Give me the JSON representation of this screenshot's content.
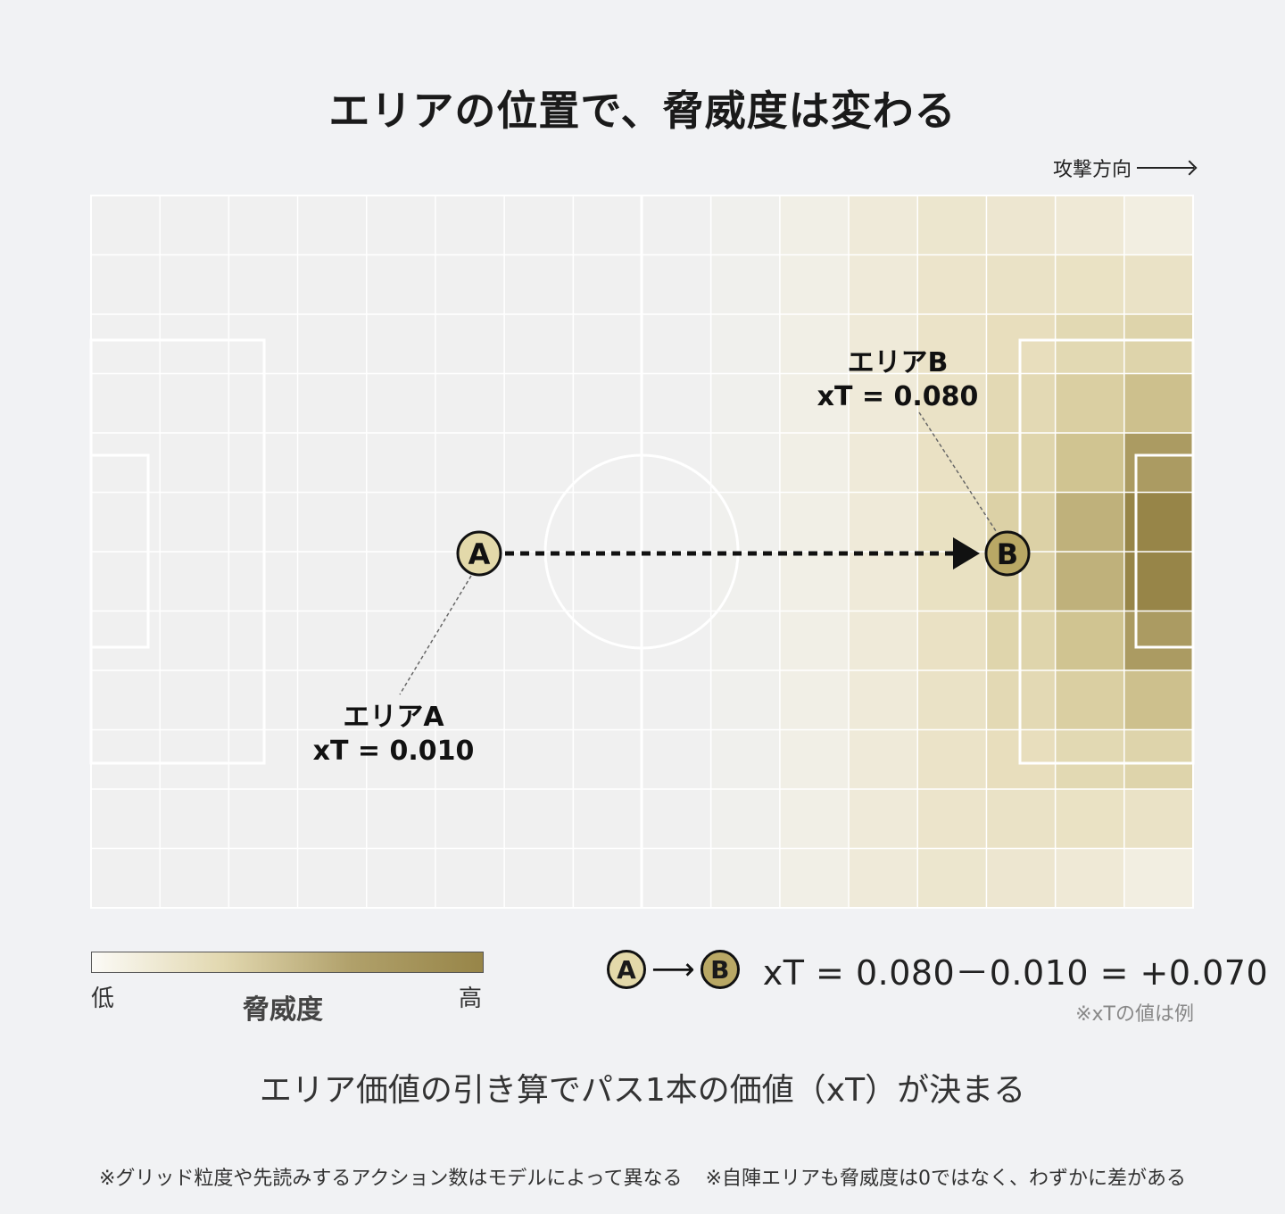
{
  "title": "エリアの位置で、脅威度は変わる",
  "direction_label": "攻撃方向",
  "area_a": {
    "marker": "A",
    "name": "エリアA",
    "xt_text": "xT = 0.010"
  },
  "area_b": {
    "marker": "B",
    "name": "エリアB",
    "xt_text": "xT = 0.080"
  },
  "legend": {
    "low": "低",
    "high": "高",
    "label": "脅威度"
  },
  "formula": {
    "from": "A",
    "to": "B",
    "arrow": "⟶",
    "expression": "xT = 0.080－0.010 = +0.070",
    "note": "※xTの値は例"
  },
  "subtitle": "エリア価値の引き算でパス1本の価値（xT）が決まる",
  "footnotes": [
    "※グリッド粒度や先読みするアクション数はモデルによって異なる",
    "※自陣エリアも脅威度は0ではなく、わずかに差がある"
  ],
  "colors": {
    "background": "#f1f2f4",
    "low": "#f0f0f0",
    "high": "#978548",
    "marker_a": "#e3d9aa",
    "marker_b": "#b9a865"
  }
}
